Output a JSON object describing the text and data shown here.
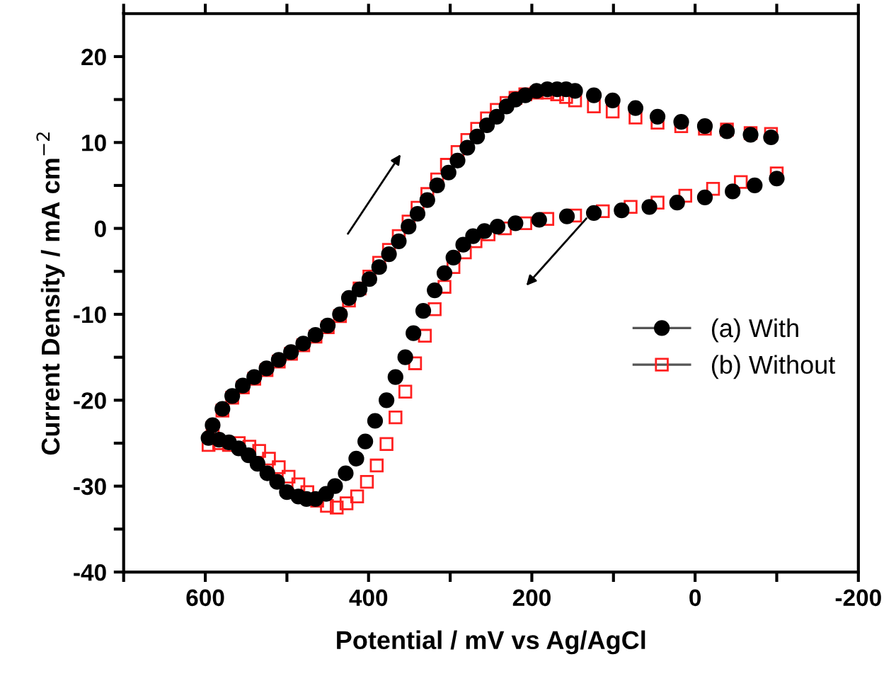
{
  "chart_data": {
    "type": "scatter",
    "xlabel": "Potential / mV vs Ag/AgCl",
    "ylabel": "Current Density / mA cm$^{−2}$",
    "xlim": [
      700,
      -200
    ],
    "xticks": [
      {
        "value": 700,
        "label": null
      },
      600,
      {
        "value": 500,
        "label": null
      },
      400,
      {
        "value": 300,
        "label": null
      },
      200,
      {
        "value": 100,
        "label": null
      },
      0,
      {
        "value": -100,
        "label": null
      },
      -200
    ],
    "ylim": [
      -40,
      25
    ],
    "yticks": [
      -40,
      {
        "value": -35,
        "label": null
      },
      -30,
      {
        "value": -25,
        "label": null
      },
      -20,
      {
        "value": -15,
        "label": null
      },
      -10,
      {
        "value": -5,
        "label": null
      },
      0,
      {
        "value": 5,
        "label": null
      },
      10,
      {
        "value": 15,
        "label": null
      },
      20
    ],
    "grid": false,
    "legend": "right",
    "series": [
      {
        "name": "(a) With",
        "color": "#000000",
        "marker": "circle",
        "x": [
          596,
          591,
          579,
          567,
          554,
          540,
          525,
          510,
          495,
          480,
          465,
          450,
          435,
          424,
          411,
          399,
          387,
          375,
          363,
          351,
          340,
          328,
          316,
          302,
          291,
          279,
          267,
          255,
          243,
          231,
          220,
          208,
          194,
          181,
          169,
          158,
          147,
          124,
          101,
          73,
          46,
          17,
          -12,
          -39,
          -68,
          -93,
          -100,
          -73,
          -46,
          -12,
          22,
          56,
          90,
          124,
          157,
          191,
          220,
          242,
          258,
          272,
          284,
          296,
          307,
          319,
          333,
          345,
          355,
          367,
          378,
          392,
          404,
          415,
          428,
          441,
          452,
          465,
          476,
          486,
          500,
          512,
          524,
          536,
          547,
          559,
          571,
          583
        ],
        "values": [
          -24.4,
          -22.9,
          -21,
          -19.5,
          -18.3,
          -17.3,
          -16.3,
          -15.3,
          -14.4,
          -13.4,
          -12.4,
          -11.3,
          -10.0,
          -8.1,
          -7.1,
          -5.9,
          -4.5,
          -3.0,
          -1.5,
          0.2,
          1.7,
          3.3,
          5.0,
          6.5,
          7.9,
          9.4,
          10.7,
          12.0,
          13.0,
          14.2,
          15.0,
          15.5,
          16.0,
          16.2,
          16.2,
          16.2,
          16.0,
          15.5,
          14.9,
          14.0,
          13.0,
          12.4,
          11.9,
          11.3,
          10.9,
          10.6,
          5.8,
          5.0,
          4.3,
          3.6,
          3.0,
          2.5,
          2.1,
          1.8,
          1.4,
          1.0,
          0.6,
          0.2,
          -0.3,
          -0.9,
          -1.9,
          -3.4,
          -5.2,
          -7.2,
          -9.6,
          -12.2,
          -15.0,
          -17.3,
          -20.0,
          -22.4,
          -24.8,
          -26.8,
          -28.5,
          -30.0,
          -30.9,
          -31.5,
          -31.5,
          -31.2,
          -30.7,
          -29.5,
          -28.5,
          -27.4,
          -26.4,
          -25.6,
          -24.9,
          -24.6
        ]
      },
      {
        "name": "(b) Without",
        "color": "#ff2020",
        "marker": "square",
        "x": [
          596,
          591,
          579,
          567,
          554,
          540,
          525,
          510,
          495,
          480,
          465,
          450,
          435,
          424,
          411,
          399,
          387,
          375,
          363,
          351,
          340,
          328,
          316,
          304,
          291,
          279,
          267,
          255,
          243,
          231,
          220,
          208,
          194,
          181,
          169,
          158,
          147,
          124,
          101,
          73,
          46,
          17,
          -12,
          -39,
          -68,
          -93,
          -100,
          -56,
          -22,
          12,
          46,
          79,
          113,
          147,
          181,
          208,
          233,
          253,
          269,
          282,
          296,
          307,
          319,
          331,
          343,
          355,
          367,
          378,
          390,
          402,
          414,
          427,
          439,
          451,
          463,
          475,
          486,
          498,
          510,
          522,
          534,
          546,
          559,
          571,
          583
        ],
        "values": [
          -25.2,
          -23.2,
          -21.2,
          -19.7,
          -18.5,
          -17.5,
          -16.5,
          -15.5,
          -14.6,
          -13.6,
          -12.6,
          -11.5,
          -10.2,
          -8.4,
          -7.0,
          -5.6,
          -4.0,
          -2.5,
          -0.9,
          0.8,
          2.4,
          4.0,
          5.7,
          7.4,
          8.9,
          10.3,
          11.6,
          12.8,
          13.8,
          14.6,
          15.2,
          15.6,
          15.8,
          15.8,
          15.6,
          15.3,
          14.9,
          14.2,
          13.6,
          12.9,
          12.3,
          11.9,
          11.6,
          11.5,
          11.1,
          11.0,
          6.4,
          5.4,
          4.6,
          3.8,
          3.0,
          2.5,
          2.0,
          1.5,
          1.1,
          0.6,
          0.0,
          -0.7,
          -1.5,
          -2.8,
          -4.5,
          -6.8,
          -9.4,
          -12.5,
          -15.7,
          -19.0,
          -22.0,
          -25.1,
          -27.6,
          -29.5,
          -31.2,
          -32.0,
          -32.5,
          -32.3,
          -31.7,
          -30.7,
          -29.8,
          -28.9,
          -27.8,
          -26.8,
          -25.9,
          -25.4,
          -25.0,
          -25.2,
          -25.0
        ]
      }
    ]
  }
}
